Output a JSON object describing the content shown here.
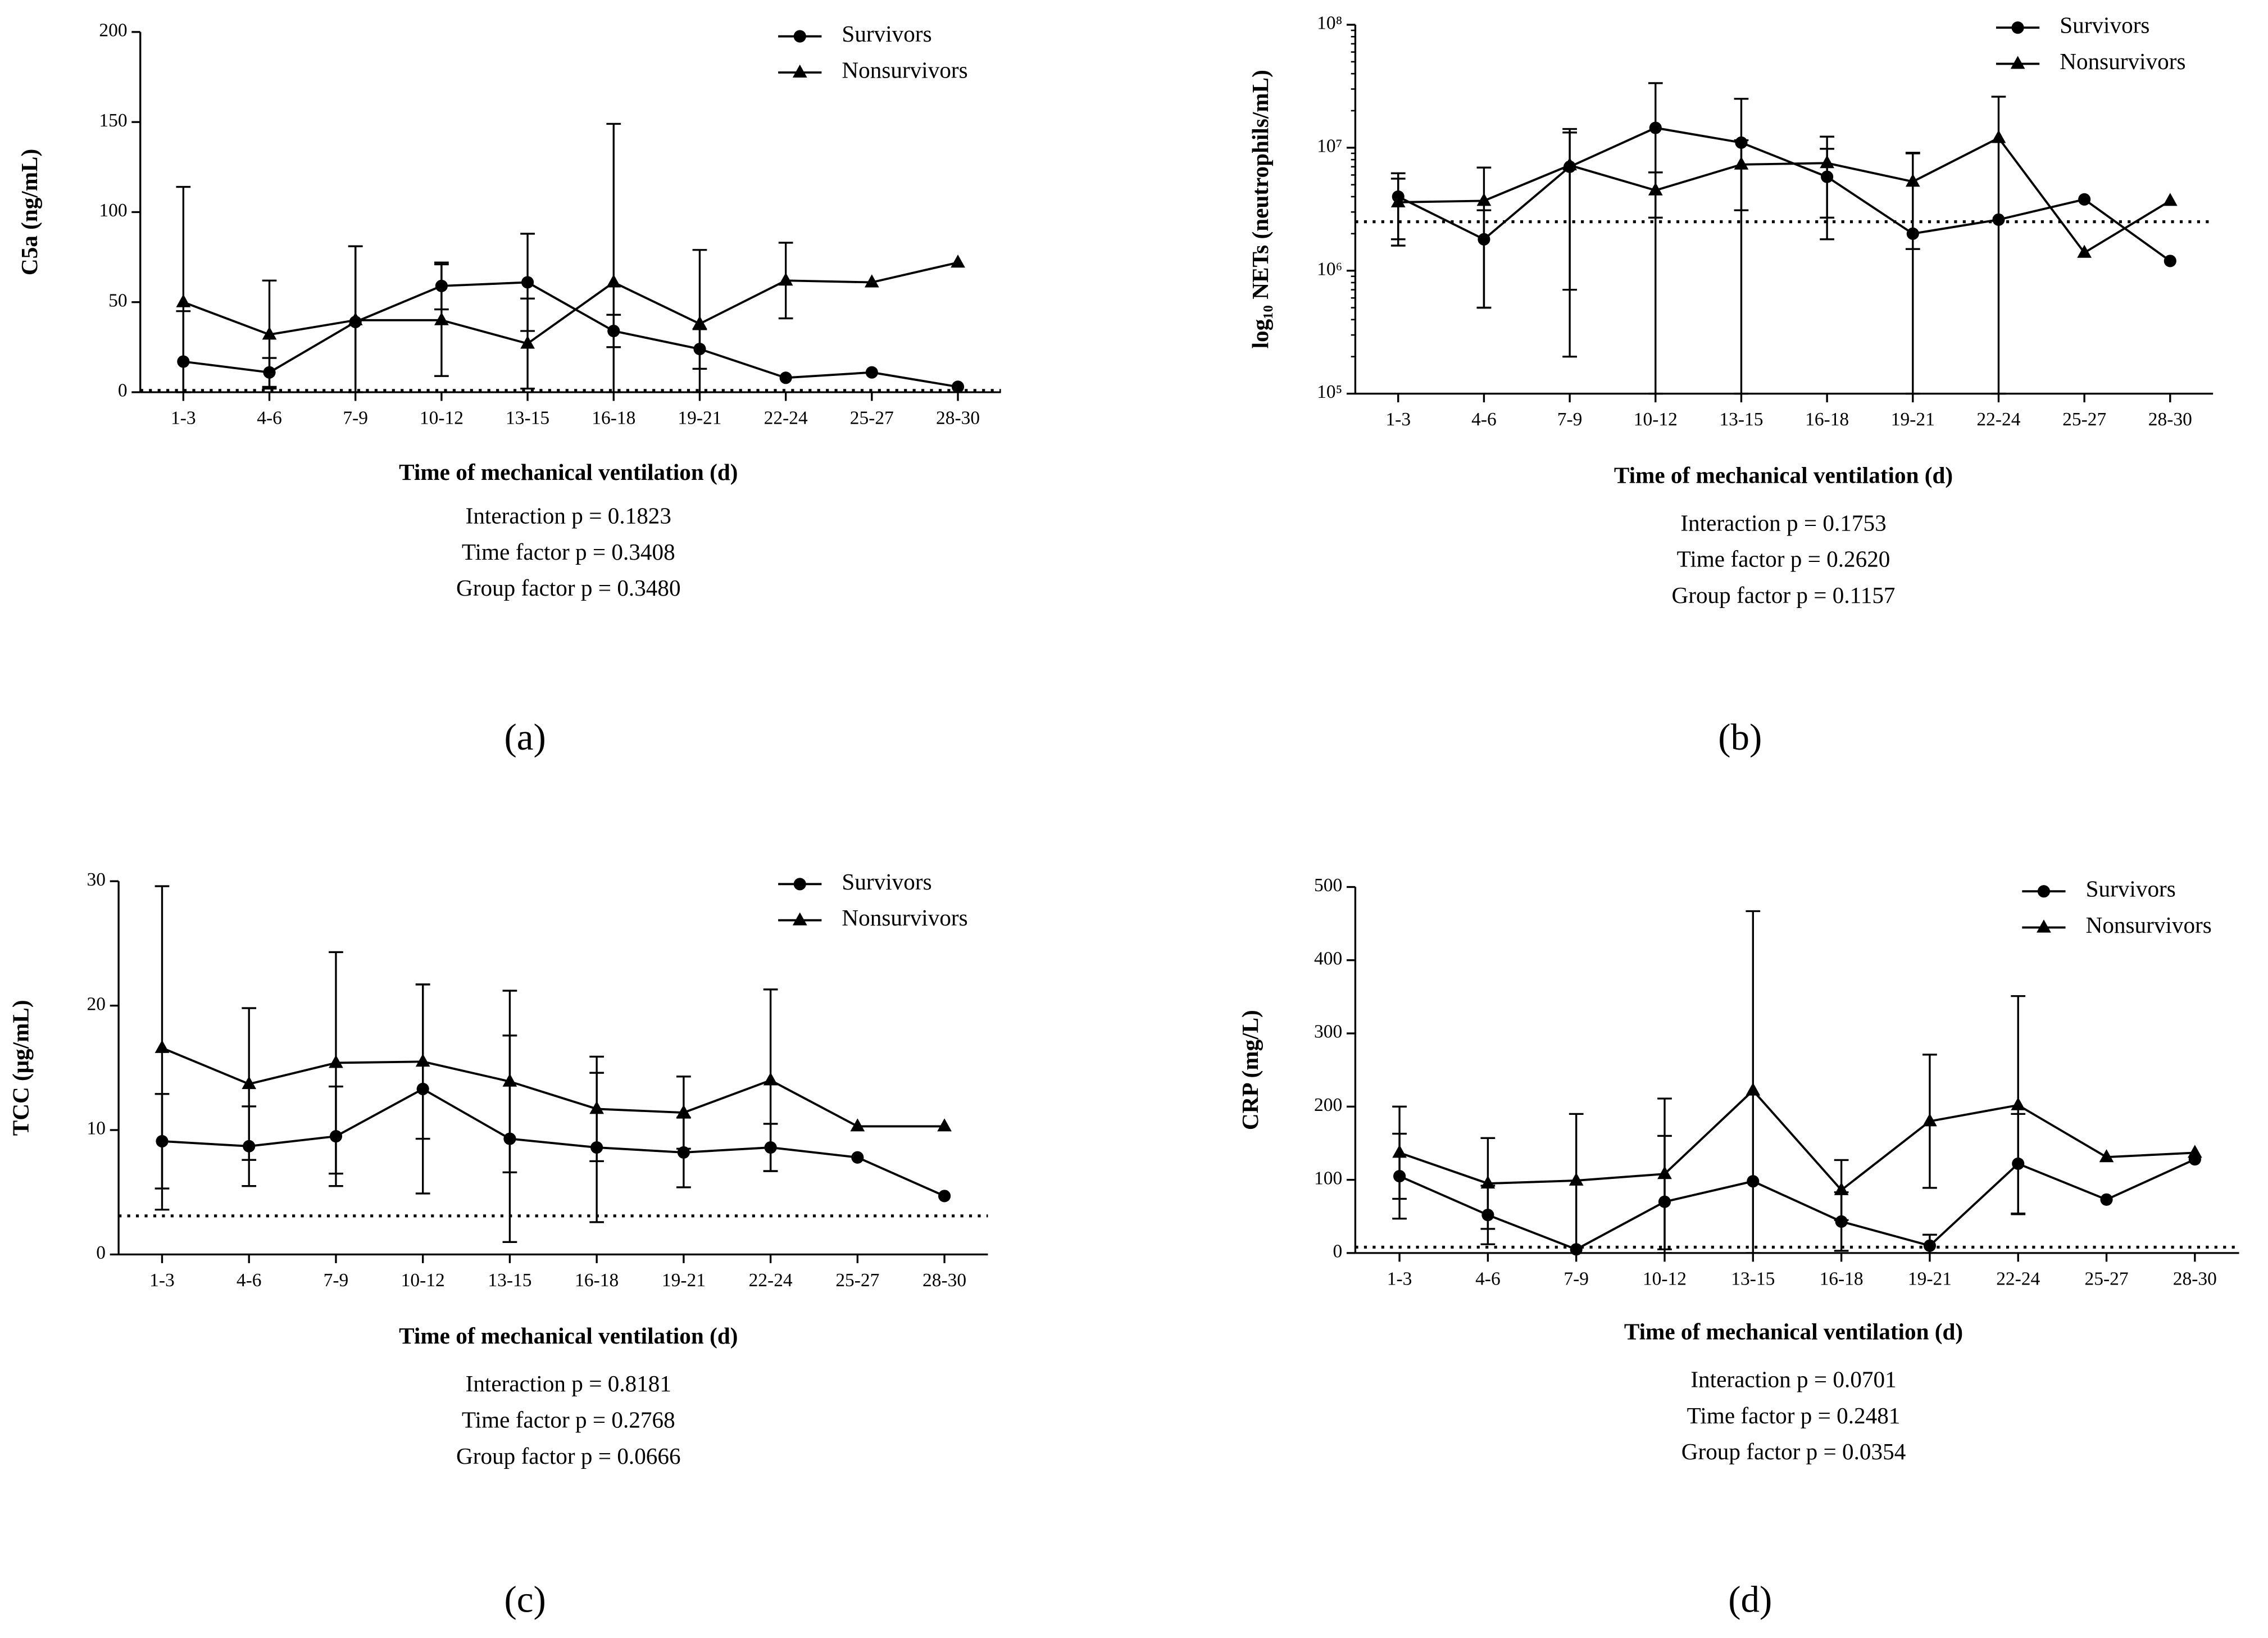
{
  "chart_data": [
    {
      "type": "line",
      "panel_label": "(a)",
      "x_label": "Time of mechanical ventilation (d)",
      "y_label": "C5a (ng/mL)",
      "categories": [
        "1-3",
        "4-6",
        "7-9",
        "10-12",
        "13-15",
        "16-18",
        "19-21",
        "22-24",
        "25-27",
        "28-30"
      ],
      "ylim": [
        0,
        200
      ],
      "yticks": [
        0,
        50,
        100,
        150,
        200
      ],
      "reference_line": 1,
      "series": [
        {
          "name": "Survivors",
          "marker": "circle",
          "color": "#000000",
          "values": [
            17,
            11,
            39,
            59,
            61,
            34,
            24,
            8,
            11,
            3
          ],
          "errors": [
            28,
            8,
            42,
            13,
            27,
            9,
            11,
            null,
            null,
            null
          ]
        },
        {
          "name": "Nonsurvivors",
          "marker": "triangle",
          "color": "#000000",
          "values": [
            50,
            32,
            40,
            40,
            27,
            61,
            38,
            62,
            61,
            72
          ],
          "errors": [
            64,
            30,
            41,
            31,
            25,
            88,
            41,
            21,
            null,
            null
          ]
        }
      ],
      "stats": [
        "Interaction p = 0.1823",
        "Time factor p = 0.3408",
        "Group factor p = 0.3480"
      ]
    },
    {
      "type": "line",
      "panel_label": "(b)",
      "x_label": "Time of mechanical ventilation (d)",
      "y_label": "log₁₀ NETs (neutrophils/mL)",
      "log_scale": true,
      "categories": [
        "1-3",
        "4-6",
        "7-9",
        "10-12",
        "13-15",
        "16-18",
        "19-21",
        "22-24",
        "25-27",
        "28-30"
      ],
      "ylim": [
        100000,
        100000000
      ],
      "yticks": [
        {
          "value": 100000,
          "label": "10⁵"
        },
        {
          "value": 1000000,
          "label": "10⁶"
        },
        {
          "value": 10000000,
          "label": "10⁷"
        },
        {
          "value": 100000000,
          "label": "10⁸"
        }
      ],
      "reference_line": 2500000,
      "series": [
        {
          "name": "Survivors",
          "marker": "circle",
          "color": "#000000",
          "values": [
            4000000,
            1800000,
            7000000,
            14500000,
            11000000,
            5800000,
            2000000,
            2600000,
            3800000,
            1200000
          ],
          "errors": [
            2200000,
            1300000,
            6300000,
            19000000,
            14000000,
            4000000,
            7000000,
            null,
            null,
            null
          ]
        },
        {
          "name": "Nonsurvivors",
          "marker": "triangle",
          "color": "#000000",
          "values": [
            3600000,
            3700000,
            7200000,
            4500000,
            7300000,
            7500000,
            5300000,
            12000000,
            1400000,
            3700000
          ],
          "errors": [
            2000000,
            3200000,
            7000000,
            1800000,
            4200000,
            4800000,
            3800000,
            14000000,
            null,
            null
          ]
        }
      ],
      "stats": [
        "Interaction p = 0.1753",
        "Time factor p  = 0.2620",
        "Group factor p = 0.1157"
      ]
    },
    {
      "type": "line",
      "panel_label": "(c)",
      "x_label": "Time of mechanical ventilation (d)",
      "y_label": "TCC (μg/mL)",
      "categories": [
        "1-3",
        "4-6",
        "7-9",
        "10-12",
        "13-15",
        "16-18",
        "19-21",
        "22-24",
        "25-27",
        "28-30"
      ],
      "ylim": [
        0,
        30
      ],
      "yticks": [
        0,
        10,
        20,
        30
      ],
      "reference_line": 3.1,
      "series": [
        {
          "name": "Survivors",
          "marker": "circle",
          "color": "#000000",
          "values": [
            9.1,
            8.7,
            9.5,
            13.3,
            9.3,
            8.6,
            8.2,
            8.6,
            7.8,
            4.7
          ],
          "errors": [
            3.8,
            3.2,
            4.0,
            8.4,
            8.3,
            6.0,
            2.8,
            1.9,
            null,
            null
          ]
        },
        {
          "name": "Nonsurvivors",
          "marker": "triangle",
          "color": "#000000",
          "values": [
            16.6,
            13.7,
            15.4,
            15.5,
            13.9,
            11.7,
            11.4,
            14.0,
            10.3,
            10.3
          ],
          "errors": [
            13.0,
            6.1,
            8.9,
            6.2,
            7.3,
            4.2,
            2.9,
            7.3,
            null,
            null
          ]
        }
      ],
      "stats": [
        "Interaction p = 0.8181",
        "Time factor p = 0.2768",
        "Group factor p = 0.0666"
      ]
    },
    {
      "type": "line",
      "panel_label": "(d)",
      "x_label": "Time of mechanical ventilation (d)",
      "y_label": "CRP (mg/L)",
      "categories": [
        "1-3",
        "4-6",
        "7-9",
        "10-12",
        "13-15",
        "16-18",
        "19-21",
        "22-24",
        "25-27",
        "28-30"
      ],
      "ylim": [
        0,
        500
      ],
      "yticks": [
        0,
        100,
        200,
        300,
        400,
        500
      ],
      "reference_line": 8,
      "series": [
        {
          "name": "Survivors",
          "marker": "circle",
          "color": "#000000",
          "values": [
            105,
            52,
            5,
            70,
            98,
            43,
            10,
            122,
            73,
            128
          ],
          "errors": [
            58,
            40,
            null,
            90,
            null,
            40,
            15,
            68,
            null,
            null
          ]
        },
        {
          "name": "Nonsurvivors",
          "marker": "triangle",
          "color": "#000000",
          "values": [
            137,
            95,
            99,
            108,
            222,
            86,
            180,
            202,
            131,
            137
          ],
          "errors": [
            63,
            62,
            91,
            103,
            245,
            41,
            91,
            149,
            null,
            null
          ]
        }
      ],
      "stats": [
        "Interaction p = 0.0701",
        "Time factor p = 0.2481",
        "Group factor p = 0.0354"
      ]
    }
  ]
}
